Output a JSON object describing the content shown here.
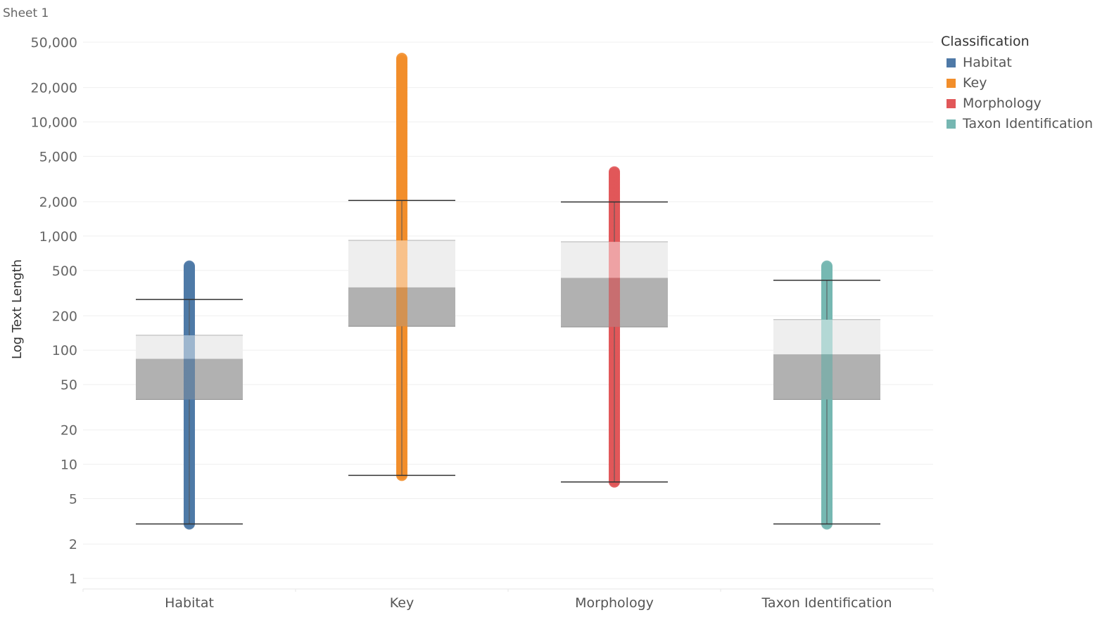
{
  "sheet": {
    "title": "Sheet 1"
  },
  "legend": {
    "title": "Classification",
    "items": [
      {
        "label": "Habitat",
        "color": "#4e79a7"
      },
      {
        "label": "Key",
        "color": "#f28e2b"
      },
      {
        "label": "Morphology",
        "color": "#e15759"
      },
      {
        "label": "Taxon Identification",
        "color": "#76b7b2"
      }
    ]
  },
  "chart_data": {
    "type": "box",
    "title": "",
    "xlabel": "",
    "ylabel": "Log Text Length",
    "yscale": "log",
    "ylim": [
      1,
      50000
    ],
    "yticks": [
      1,
      2,
      5,
      10,
      20,
      50,
      100,
      200,
      500,
      1000,
      2000,
      5000,
      10000,
      20000,
      50000
    ],
    "ytick_labels": [
      "1",
      "2",
      "5",
      "10",
      "20",
      "50",
      "100",
      "200",
      "500",
      "1,000",
      "2,000",
      "5,000",
      "10,000",
      "20,000",
      "50,000"
    ],
    "grid": true,
    "legend_position": "top-right",
    "categories": [
      "Habitat",
      "Key",
      "Morphology",
      "Taxon Identification"
    ],
    "boxes": [
      {
        "category": "Habitat",
        "color": "#4e79a7",
        "whisker_low": 3,
        "q1": 37,
        "median": 84,
        "q3": 135,
        "whisker_high": 278,
        "point_min": 3,
        "point_max": 545
      },
      {
        "category": "Key",
        "color": "#f28e2b",
        "whisker_low": 8,
        "q1": 162,
        "median": 355,
        "q3": 915,
        "whisker_high": 2050,
        "point_min": 8,
        "point_max": 36000
      },
      {
        "category": "Morphology",
        "color": "#e15759",
        "whisker_low": 7,
        "q1": 160,
        "median": 430,
        "q3": 890,
        "whisker_high": 1990,
        "point_min": 7,
        "point_max": 3650
      },
      {
        "category": "Taxon Identification",
        "color": "#76b7b2",
        "whisker_low": 3,
        "q1": 37,
        "median": 92,
        "q3": 185,
        "whisker_high": 410,
        "point_min": 3,
        "point_max": 545
      }
    ]
  }
}
